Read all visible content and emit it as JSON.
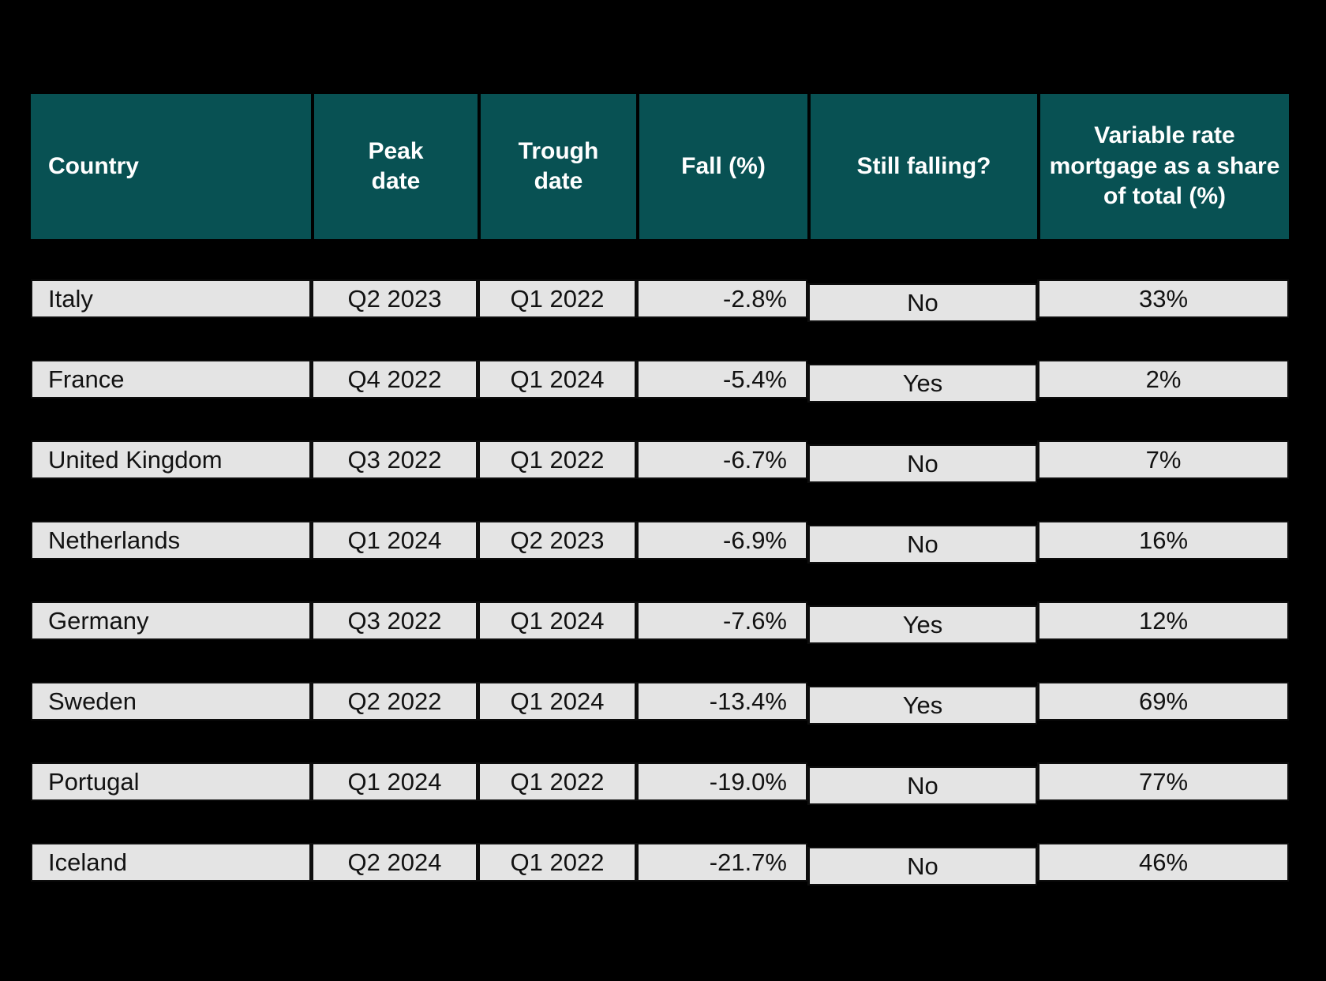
{
  "chart_data": {
    "type": "table",
    "columns": [
      {
        "id": "country",
        "label": "Country"
      },
      {
        "id": "peak_date",
        "label": "Peak\ndate"
      },
      {
        "id": "trough_date",
        "label": "Trough\ndate"
      },
      {
        "id": "fall_pct",
        "label": "Fall (%)"
      },
      {
        "id": "still_falling",
        "label": "Still falling?"
      },
      {
        "id": "variable_share",
        "label": "Variable rate mortgage as a share of total (%)"
      }
    ],
    "rows": [
      {
        "country": "Italy",
        "peak_date": "Q2 2023",
        "trough_date": "Q1 2022",
        "fall_pct": "-2.8%",
        "still_falling": "No",
        "variable_share": "33%"
      },
      {
        "country": "France",
        "peak_date": "Q4 2022",
        "trough_date": "Q1 2024",
        "fall_pct": "-5.4%",
        "still_falling": "Yes",
        "variable_share": "2%"
      },
      {
        "country": "United Kingdom",
        "peak_date": "Q3 2022",
        "trough_date": "Q1 2022",
        "fall_pct": "-6.7%",
        "still_falling": "No",
        "variable_share": "7%"
      },
      {
        "country": "Netherlands",
        "peak_date": "Q1 2024",
        "trough_date": "Q2 2023",
        "fall_pct": "-6.9%",
        "still_falling": "No",
        "variable_share": "16%"
      },
      {
        "country": "Germany",
        "peak_date": "Q3 2022",
        "trough_date": "Q1 2024",
        "fall_pct": "-7.6%",
        "still_falling": "Yes",
        "variable_share": "12%"
      },
      {
        "country": "Sweden",
        "peak_date": "Q2 2022",
        "trough_date": "Q1 2024",
        "fall_pct": "-13.4%",
        "still_falling": "Yes",
        "variable_share": "69%"
      },
      {
        "country": "Portugal",
        "peak_date": "Q1 2024",
        "trough_date": "Q1 2022",
        "fall_pct": "-19.0%",
        "still_falling": "No",
        "variable_share": "77%"
      },
      {
        "country": "Iceland",
        "peak_date": "Q2 2024",
        "trough_date": "Q1 2022",
        "fall_pct": "-21.7%",
        "still_falling": "No",
        "variable_share": "46%"
      }
    ],
    "colors": {
      "page_bg": "#000000",
      "header_bg": "#085153",
      "header_text": "#ffffff",
      "row_bg": "#e4e4e4",
      "row_text": "#121212",
      "border": "#0d0d0d"
    },
    "layout": {
      "legend": "none",
      "grid": "cell-borders",
      "row_gap": "black separator bands between rows"
    }
  }
}
